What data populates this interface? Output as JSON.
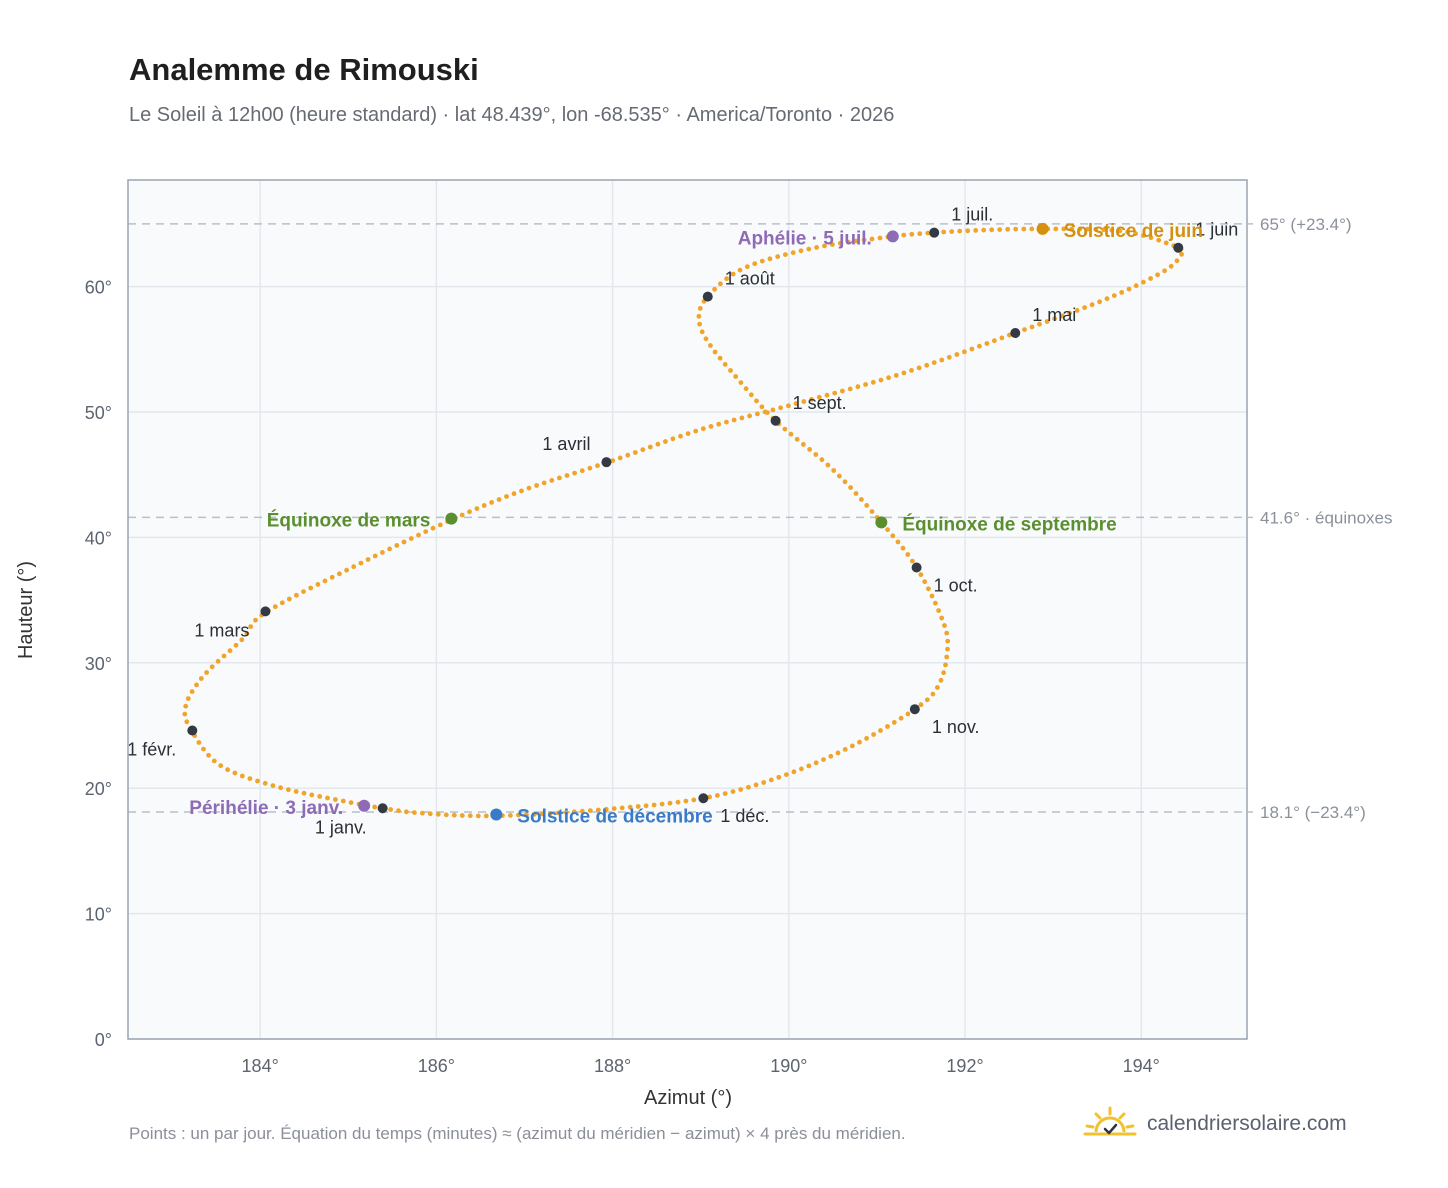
{
  "header": {
    "title": "Analemme de Rimouski",
    "subtitle": "Le Soleil à 12h00 (heure standard) · lat 48.439°, lon -68.535° · America/Toronto · 2026"
  },
  "footer": {
    "note": "Points : un par jour. Équation du temps (minutes) ≈ (azimut du méridien − azimut) × 4 près du méridien.",
    "brand": "calendriersolaire.com"
  },
  "colors": {
    "curve": "#f0a429",
    "month_marker": "#333a44",
    "equinox": "#5a8f2e",
    "june_solstice": "#d4900f",
    "december_solstice": "#3a7bc8",
    "apsis": "#8e6bb5",
    "plot_bg": "#f8fafc",
    "grid": "#e3e8ee",
    "reference_line": "#b8c0ca",
    "axis_text": "#5c6470"
  },
  "chart_data": {
    "type": "scatter",
    "xlabel": "Azimut (°)",
    "ylabel": "Hauteur (°)",
    "xlim": [
      182.5,
      195.2
    ],
    "ylim": [
      0,
      68.5
    ],
    "xticks": [
      {
        "value": 184,
        "label": "184°"
      },
      {
        "value": 186,
        "label": "186°"
      },
      {
        "value": 188,
        "label": "188°"
      },
      {
        "value": 190,
        "label": "190°"
      },
      {
        "value": 192,
        "label": "192°"
      },
      {
        "value": 194,
        "label": "194°"
      }
    ],
    "yticks": [
      {
        "value": 0,
        "label": "0°"
      },
      {
        "value": 10,
        "label": "10°"
      },
      {
        "value": 20,
        "label": "20°"
      },
      {
        "value": 30,
        "label": "30°"
      },
      {
        "value": 40,
        "label": "40°"
      },
      {
        "value": 50,
        "label": "50°"
      },
      {
        "value": 60,
        "label": "60°"
      }
    ],
    "grid": true,
    "reference_lines": [
      {
        "y": 65.0,
        "label": "65° (+23.4°)"
      },
      {
        "y": 41.6,
        "label": "41.6° · équinoxes"
      },
      {
        "y": 18.1,
        "label": "18.1° (−23.4°)"
      }
    ],
    "series": [
      {
        "points": [
          {
            "x": 185.39,
            "y": 18.4
          },
          {
            "x": 185.0,
            "y": 18.9
          },
          {
            "x": 184.2,
            "y": 20.1
          },
          {
            "x": 183.55,
            "y": 21.8
          },
          {
            "x": 183.23,
            "y": 24.5
          },
          {
            "x": 183.15,
            "y": 26.4
          },
          {
            "x": 183.35,
            "y": 28.9
          },
          {
            "x": 183.8,
            "y": 31.9
          },
          {
            "x": 184.06,
            "y": 34.0
          },
          {
            "x": 185.1,
            "y": 37.8
          },
          {
            "x": 186.17,
            "y": 41.4
          },
          {
            "x": 187.0,
            "y": 43.8
          },
          {
            "x": 187.95,
            "y": 46.0
          },
          {
            "x": 189.0,
            "y": 48.6
          },
          {
            "x": 190.1,
            "y": 50.7
          },
          {
            "x": 191.3,
            "y": 53.1
          },
          {
            "x": 192.57,
            "y": 56.3
          },
          {
            "x": 193.6,
            "y": 59.0
          },
          {
            "x": 194.25,
            "y": 61.2
          },
          {
            "x": 194.45,
            "y": 62.5
          },
          {
            "x": 194.42,
            "y": 63.1
          },
          {
            "x": 193.8,
            "y": 64.4
          },
          {
            "x": 192.88,
            "y": 64.6
          },
          {
            "x": 192.2,
            "y": 64.5
          },
          {
            "x": 191.65,
            "y": 64.3
          },
          {
            "x": 191.18,
            "y": 64.0
          },
          {
            "x": 190.3,
            "y": 63.1
          },
          {
            "x": 189.5,
            "y": 61.5
          },
          {
            "x": 189.08,
            "y": 59.2
          },
          {
            "x": 188.98,
            "y": 57.4
          },
          {
            "x": 189.1,
            "y": 55.4
          },
          {
            "x": 189.45,
            "y": 52.4
          },
          {
            "x": 189.85,
            "y": 49.3
          },
          {
            "x": 190.5,
            "y": 45.4
          },
          {
            "x": 191.05,
            "y": 41.2
          },
          {
            "x": 191.45,
            "y": 37.6
          },
          {
            "x": 191.75,
            "y": 33.3
          },
          {
            "x": 191.8,
            "y": 31.0
          },
          {
            "x": 191.7,
            "y": 28.2
          },
          {
            "x": 191.43,
            "y": 26.3
          },
          {
            "x": 190.7,
            "y": 23.3
          },
          {
            "x": 189.9,
            "y": 20.9
          },
          {
            "x": 189.03,
            "y": 19.2
          },
          {
            "x": 187.9,
            "y": 18.3
          },
          {
            "x": 186.68,
            "y": 17.8
          },
          {
            "x": 185.85,
            "y": 18.0
          },
          {
            "x": 185.39,
            "y": 18.4
          }
        ]
      }
    ],
    "month_markers": [
      {
        "label": "1 janv.",
        "x": 185.39,
        "y": 18.4,
        "pos": "below-left"
      },
      {
        "label": "1 févr.",
        "x": 183.23,
        "y": 24.6,
        "pos": "below-left"
      },
      {
        "label": "1 mars",
        "x": 184.06,
        "y": 34.1,
        "pos": "below-left"
      },
      {
        "label": "1 avril",
        "x": 187.93,
        "y": 46.0,
        "pos": "above-left"
      },
      {
        "label": "1 mai",
        "x": 192.57,
        "y": 56.3,
        "pos": "above-right"
      },
      {
        "label": "1 juin",
        "x": 194.42,
        "y": 63.1,
        "pos": "above-right"
      },
      {
        "label": "1 juil.",
        "x": 191.65,
        "y": 64.3,
        "pos": "above-right"
      },
      {
        "label": "1 août",
        "x": 189.08,
        "y": 59.2,
        "pos": "above-right"
      },
      {
        "label": "1 sept.",
        "x": 189.85,
        "y": 49.3,
        "pos": "above-right"
      },
      {
        "label": "1 oct.",
        "x": 191.45,
        "y": 37.6,
        "pos": "below-right"
      },
      {
        "label": "1 nov.",
        "x": 191.43,
        "y": 26.3,
        "pos": "below-right"
      },
      {
        "label": "1 déc.",
        "x": 189.03,
        "y": 19.2,
        "pos": "below-right"
      }
    ],
    "events": [
      {
        "label": "Équinoxe de mars",
        "x": 186.17,
        "y": 41.5,
        "color": "#5a8f2e",
        "pos": "left"
      },
      {
        "label": "Équinoxe de septembre",
        "x": 191.05,
        "y": 41.2,
        "color": "#5a8f2e",
        "pos": "right"
      },
      {
        "label": "Solstice de juin",
        "x": 192.88,
        "y": 64.6,
        "color": "#d4900f",
        "pos": "right"
      },
      {
        "label": "Solstice de décembre",
        "x": 186.68,
        "y": 17.9,
        "color": "#3a7bc8",
        "pos": "right"
      },
      {
        "label": "Aphélie · 5 juil.",
        "x": 191.18,
        "y": 64.0,
        "color": "#8e6bb5",
        "pos": "left"
      },
      {
        "label": "Périhélie · 3 janv.",
        "x": 185.18,
        "y": 18.6,
        "color": "#8e6bb5",
        "pos": "left"
      }
    ]
  }
}
